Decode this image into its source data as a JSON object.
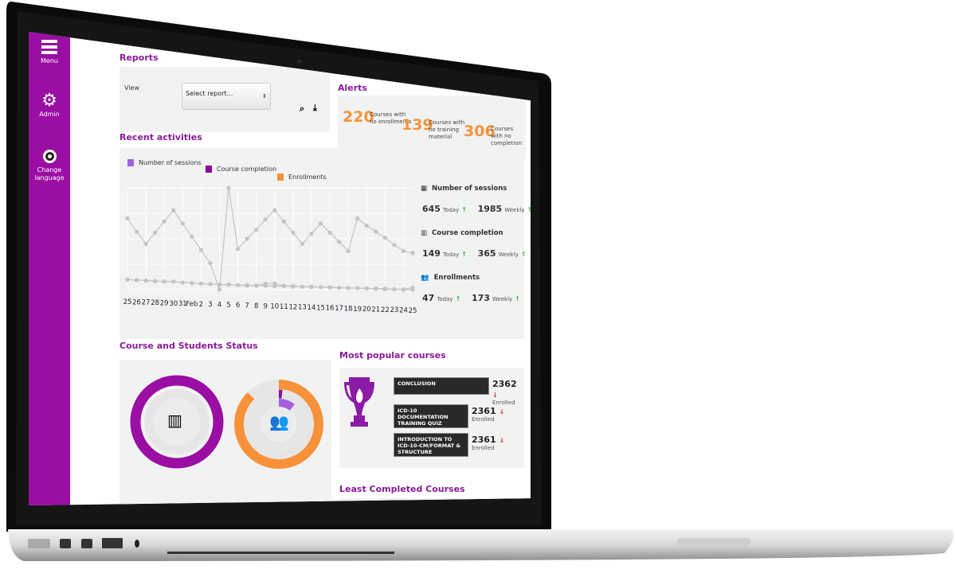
{
  "sidebar": {
    "items": [
      {
        "label": "Menu",
        "icon": "hamburger-icon"
      },
      {
        "label": "Admin",
        "icon": "gear-icon"
      },
      {
        "label": "Change language",
        "icon": "globe-icon"
      }
    ]
  },
  "reports": {
    "title": "Reports",
    "view_label": "View",
    "select_value": "Select report...",
    "icons": [
      "search-icon",
      "download-icon"
    ]
  },
  "alerts": {
    "title": "Alerts",
    "items": [
      {
        "value": "220",
        "label": "Courses with no enrollments"
      },
      {
        "value": "139",
        "label": "Courses with no training material"
      },
      {
        "value": "306",
        "label": "Courses with no completion"
      }
    ]
  },
  "recent": {
    "title": "Recent activities",
    "legend": [
      {
        "label": "Number of sessions",
        "color": "#a55fe0"
      },
      {
        "label": "Course completion",
        "color": "#8a0e99"
      },
      {
        "label": "Enrollments",
        "color": "#f7923a"
      }
    ],
    "stats": [
      {
        "title": "Number of sessions",
        "icon": "calendar-icon",
        "today": "645",
        "today_label": "Today",
        "weekly": "1985",
        "weekly_label": "Weekly"
      },
      {
        "title": "Course completion",
        "icon": "books-icon",
        "today": "149",
        "today_label": "Today",
        "weekly": "365",
        "weekly_label": "Weekly"
      },
      {
        "title": "Enrollments",
        "icon": "users-icon",
        "today": "47",
        "today_label": "Today",
        "weekly": "173",
        "weekly_label": "Weekly"
      }
    ]
  },
  "chart_data": {
    "type": "line",
    "grid": true,
    "x": [
      "25",
      "26",
      "27",
      "28",
      "29",
      "30",
      "31",
      "Feb",
      "2",
      "3",
      "4",
      "5",
      "6",
      "7",
      "8",
      "9",
      "10",
      "11",
      "12",
      "13",
      "14",
      "15",
      "16",
      "17",
      "18",
      "19",
      "20",
      "21",
      "22",
      "23",
      "24",
      "25"
    ],
    "series": [
      {
        "values": [
          70,
          57,
          45,
          56,
          67,
          78,
          65,
          52,
          39,
          26,
          0,
          100,
          40,
          50,
          59,
          69,
          78,
          67,
          56,
          45,
          55,
          65,
          56,
          47,
          38,
          70,
          63,
          57,
          51,
          44,
          38,
          36
        ]
      },
      {
        "values": [
          10,
          9.5,
          9,
          8.5,
          8,
          8,
          7,
          6.5,
          6,
          5.5,
          5,
          5,
          4.5,
          4.5,
          4,
          6,
          6,
          4,
          3.5,
          3,
          3,
          2.5,
          2.5,
          2,
          2,
          1.5,
          1.5,
          1,
          1,
          0.5,
          0.5,
          2
        ]
      },
      {
        "values": [
          10,
          9.5,
          9,
          8.5,
          8,
          8,
          7,
          6.5,
          6,
          5.5,
          5,
          5,
          4.5,
          4,
          4,
          4,
          3.5,
          3.5,
          3,
          3,
          2.5,
          2.5,
          2,
          2,
          1.5,
          1.5,
          1,
          1,
          0.5,
          0.5,
          0,
          0
        ]
      }
    ]
  },
  "status": {
    "title": "Course and Students Status",
    "icons": [
      "books-icon",
      "users-icon"
    ]
  },
  "popular": {
    "title": "Most popular courses",
    "enrolled_label": "Enrolled",
    "courses": [
      {
        "name": "CONCLUSION",
        "count": "2362"
      },
      {
        "name": "ICD-10 DOCUMENTATION TRAINING QUIZ",
        "count": "2361"
      },
      {
        "name": "INTRODUCTION TO ICD-10-CM/FORMAT & STRUCTURE",
        "count": "2361"
      }
    ]
  },
  "least": {
    "title": "Least Completed Courses"
  },
  "colors": {
    "brand": "#9a0ea3",
    "accent": "#f7923a",
    "up": "#3bb34a",
    "down": "#e0262c"
  }
}
